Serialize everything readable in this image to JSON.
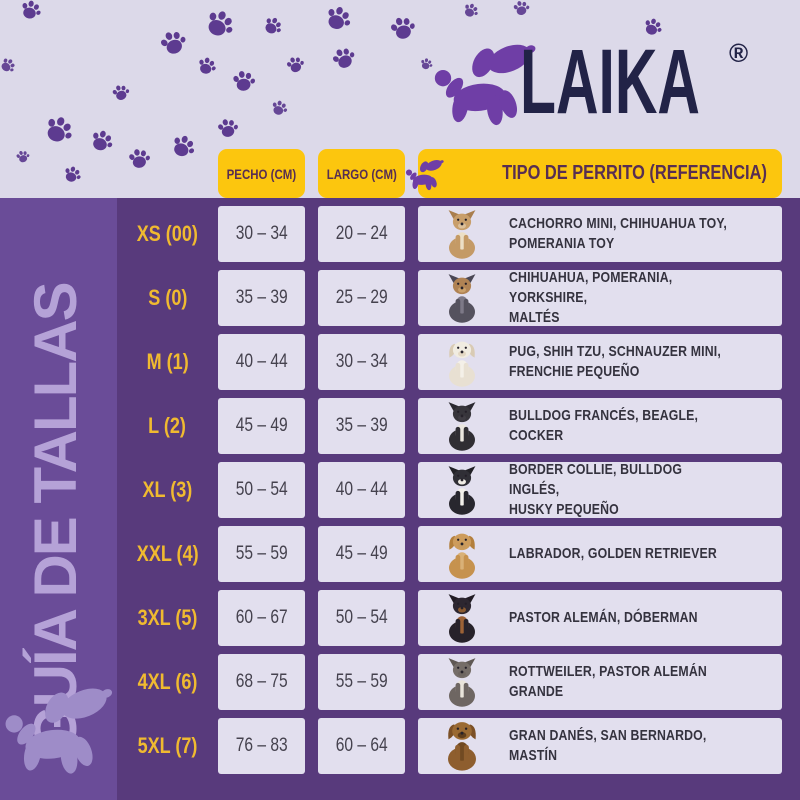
{
  "brand": {
    "name": "LAIKA",
    "registered": "®",
    "logo_icon": "balloon-dog-icon"
  },
  "sidebar": {
    "title": "GUÍA DE TALLAS",
    "balloon_icon": "balloon-dog-icon"
  },
  "table": {
    "headers": {
      "chest": "PECHO (CM)",
      "length": "LARGO (CM)",
      "reference": "TIPO DE PERRITO (REFERENCIA)",
      "reference_icon": "balloon-dog-icon"
    },
    "rows": [
      {
        "size": "XS (00)",
        "chest": "30 – 34",
        "length": "20 – 24",
        "dogs": "CACHORRO MINI, CHIHUAHUA TOY,\nPOMERANIA TOY",
        "dog_image": "chihuahua-photo"
      },
      {
        "size": "S (0)",
        "chest": "35 – 39",
        "length": "25 – 29",
        "dogs": "CHIHUAHUA, POMERANIA, YORKSHIRE,\nMALTÉS",
        "dog_image": "yorkshire-photo"
      },
      {
        "size": "M (1)",
        "chest": "40 – 44",
        "length": "30 – 34",
        "dogs": "PUG, SHIH TZU, SCHNAUZER MINI,\nFRENCHIE PEQUEÑO",
        "dog_image": "shih-tzu-photo"
      },
      {
        "size": "L (2)",
        "chest": "45 – 49",
        "length": "35 – 39",
        "dogs": "BULLDOG FRANCÉS, BEAGLE,\nCOCKER",
        "dog_image": "french-bulldog-photo"
      },
      {
        "size": "XL (3)",
        "chest": "50 – 54",
        "length": "40 – 44",
        "dogs": "BORDER COLLIE, BULLDOG INGLÉS,\nHUSKY PEQUEÑO",
        "dog_image": "border-collie-photo"
      },
      {
        "size": "XXL (4)",
        "chest": "55 – 59",
        "length": "45 – 49",
        "dogs": "LABRADOR, GOLDEN RETRIEVER",
        "dog_image": "golden-retriever-photo"
      },
      {
        "size": "3XL (5)",
        "chest": "60 – 67",
        "length": "50 – 54",
        "dogs": "PASTOR ALEMÁN, DÓBERMAN",
        "dog_image": "doberman-photo"
      },
      {
        "size": "4XL (6)",
        "chest": "68 – 75",
        "length": "55 – 59",
        "dogs": "ROTTWEILER, PASTOR ALEMÁN GRANDE",
        "dog_image": "rottweiler-photo"
      },
      {
        "size": "5XL (7)",
        "chest": "76 – 83",
        "length": "60 – 64",
        "dogs": "GRAN DANÉS, SAN BERNARDO, MASTÍN",
        "dog_image": "mastiff-photo"
      }
    ]
  },
  "colors": {
    "background": "#dcd9e9",
    "panel_purple": "#583a7c",
    "sidebar_purple": "#6a4c98",
    "accent_yellow": "#fcc60e",
    "label_yellow": "#f0ba30",
    "header_text": "#572e52",
    "cell_bg": "#e2dfee",
    "cell_text": "#45424e",
    "desc_text": "#34323e",
    "logo_navy": "#222347",
    "logo_purple": "#6f3ea6",
    "paw_purple": "#5d3b90",
    "sidebar_title": "#b5a2d7",
    "sidebar_balloon": "#9e8cc8"
  },
  "dog_palettes": {
    "chihuahua-photo": {
      "body": "#c49a66",
      "head": "#c89e6a",
      "ear": "#a97e4e",
      "chest": "#ecdfc6",
      "muzzle": "#dcc09a",
      "ears": "up"
    },
    "yorkshire-photo": {
      "body": "#55525e",
      "head": "#b08354",
      "ear": "#4a4754",
      "chest": "#7d7987",
      "muzzle": "#caa06a",
      "ears": "up"
    },
    "shih-tzu-photo": {
      "body": "#e8e0d2",
      "head": "#f1ece1",
      "ear": "#d9cbb4",
      "chest": "#f4f0e8",
      "muzzle": "#e4d8c4",
      "ears": "floppy"
    },
    "french-bulldog-photo": {
      "body": "#302e33",
      "head": "#37353b",
      "ear": "#2b2930",
      "chest": "#eae6de",
      "muzzle": "#403d44",
      "ears": "up"
    },
    "border-collie-photo": {
      "body": "#28272e",
      "head": "#302f36",
      "ear": "#222126",
      "chest": "#f2f0ea",
      "muzzle": "#efece4",
      "ears": "up"
    },
    "golden-retriever-photo": {
      "body": "#c6924e",
      "head": "#cd9c5c",
      "ear": "#b37f3c",
      "chest": "#d9b177",
      "muzzle": "#c89a5e",
      "ears": "floppy"
    },
    "doberman-photo": {
      "body": "#27222a",
      "head": "#2d2730",
      "ear": "#221d24",
      "chest": "#9c6236",
      "muzzle": "#8a5a30",
      "ears": "up"
    },
    "rottweiler-photo": {
      "body": "#6e6662",
      "head": "#756d68",
      "ear": "#5f5854",
      "chest": "#e9e4da",
      "muzzle": "#6e6660",
      "ears": "up"
    },
    "mastiff-photo": {
      "body": "#8e5e2e",
      "head": "#9a6a33",
      "ear": "#7c5026",
      "chest": "#714a22",
      "muzzle": "#5e3d1c",
      "ears": "floppy"
    }
  },
  "decor": {
    "paw_icon": "paw-print-icon",
    "paw_positions": [
      [
        20,
        0,
        22,
        12
      ],
      [
        0,
        58,
        16,
        40
      ],
      [
        44,
        116,
        30,
        22
      ],
      [
        16,
        150,
        14,
        -18
      ],
      [
        63,
        166,
        19,
        15
      ],
      [
        112,
        84,
        18,
        -20
      ],
      [
        90,
        130,
        24,
        18
      ],
      [
        128,
        148,
        23,
        -12
      ],
      [
        160,
        30,
        27,
        -25
      ],
      [
        171,
        135,
        25,
        20
      ],
      [
        197,
        57,
        20,
        12
      ],
      [
        205,
        10,
        30,
        24
      ],
      [
        217,
        118,
        22,
        -15
      ],
      [
        232,
        70,
        24,
        -8
      ],
      [
        263,
        17,
        20,
        28
      ],
      [
        271,
        100,
        17,
        12
      ],
      [
        286,
        56,
        19,
        -22
      ],
      [
        325,
        6,
        27,
        18
      ],
      [
        332,
        47,
        24,
        -30
      ],
      [
        390,
        16,
        26,
        -20
      ],
      [
        420,
        58,
        13,
        10
      ],
      [
        463,
        3,
        16,
        22
      ],
      [
        513,
        0,
        17,
        -14
      ],
      [
        643,
        18,
        20,
        16
      ]
    ]
  }
}
